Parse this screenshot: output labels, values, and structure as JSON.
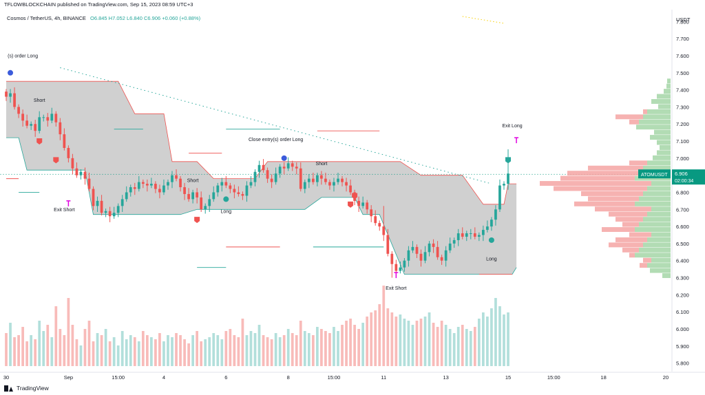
{
  "banner": "TFLOWBLOCKCHAIN published on TradingView.com, Sep 15, 2023 08:59 UTC+3",
  "legend": {
    "symbol": "Cosmos / TetherUS, 4h, BINANCE",
    "ohlc": "O6.845  H7.052  L6.840  C6.906  +0.060 (+0.88%)"
  },
  "currency": "USDT",
  "footer_brand": "TradingView",
  "colors": {
    "up": "#26a69a",
    "down": "#ef5350",
    "band_fill": "#c8c8c8",
    "vol_up": "#b2dfdb",
    "vol_down": "#f8bbb9",
    "price_tag": "#089981",
    "text": "#131722"
  },
  "price_tag": {
    "symbol": "ATOMUSDT",
    "price": "6.906",
    "countdown": "02:00:34"
  },
  "chart_data": {
    "type": "candlestick",
    "title": "Cosmos / TetherUS, 4h, BINANCE",
    "y_axis": {
      "min": 5.75,
      "max": 7.87,
      "ticks": [
        "7.800",
        "7.700",
        "7.600",
        "7.500",
        "7.400",
        "7.300",
        "7.200",
        "7.100",
        "7.000",
        "6.900",
        "6.800",
        "6.700",
        "6.600",
        "6.500",
        "6.400",
        "6.300",
        "6.200",
        "6.100",
        "6.000",
        "5.900",
        "5.800"
      ],
      "tick_values": [
        7.8,
        7.7,
        7.6,
        7.5,
        7.4,
        7.3,
        7.2,
        7.1,
        7.0,
        6.9,
        6.8,
        6.7,
        6.6,
        6.5,
        6.4,
        6.3,
        6.2,
        6.1,
        6.0,
        5.9,
        5.8
      ]
    },
    "x_axis": {
      "labels": [
        "30",
        "Sep",
        "15:00",
        "4",
        "6",
        "8",
        "15:00",
        "11",
        "13",
        "15",
        "15:00",
        "18",
        "20"
      ],
      "label_bar_index": [
        0,
        15,
        27,
        38,
        53,
        68,
        79,
        91,
        106,
        121,
        132,
        144,
        159
      ]
    },
    "bar_count_with_margin": 161,
    "candles_start": 62.2,
    "candles_end": 67.75,
    "close_series": [
      7.36,
      7.38,
      7.3,
      7.26,
      7.22,
      7.19,
      7.2,
      7.16,
      7.24,
      7.24,
      7.22,
      7.26,
      7.21,
      7.14,
      7.06,
      7.0,
      6.94,
      6.9,
      6.92,
      6.88,
      6.82,
      6.72,
      6.75,
      6.68,
      6.69,
      6.66,
      6.68,
      6.72,
      6.76,
      6.8,
      6.83,
      6.82,
      6.86,
      6.85,
      6.84,
      6.85,
      6.82,
      6.8,
      6.84,
      6.86,
      6.9,
      6.88,
      6.83,
      6.79,
      6.76,
      6.8,
      6.77,
      6.7,
      6.72,
      6.76,
      6.8,
      6.84,
      6.86,
      6.84,
      6.82,
      6.8,
      6.79,
      6.78,
      6.84,
      6.86,
      6.92,
      6.96,
      6.93,
      6.88,
      6.86,
      6.91,
      6.95,
      6.94,
      6.97,
      6.95,
      6.94,
      6.82,
      6.86,
      6.88,
      6.86,
      6.9,
      6.88,
      6.86,
      6.84,
      6.86,
      6.88,
      6.86,
      6.84,
      6.8,
      6.75,
      6.72,
      6.74,
      6.7,
      6.66,
      6.62,
      6.6,
      6.55,
      6.44,
      6.38,
      6.34,
      6.36,
      6.4,
      6.46,
      6.48,
      6.44,
      6.4,
      6.45,
      6.5,
      6.48,
      6.42,
      6.4,
      6.46,
      6.5,
      6.52,
      6.56,
      6.54,
      6.56,
      6.56,
      6.54,
      6.55,
      6.58,
      6.6,
      6.64,
      6.7,
      6.84,
      6.85,
      6.91
    ],
    "volumes": [
      0.32,
      0.42,
      0.28,
      0.3,
      0.38,
      0.24,
      0.3,
      0.26,
      0.44,
      0.34,
      0.4,
      0.28,
      0.58,
      0.36,
      0.3,
      0.66,
      0.4,
      0.26,
      0.2,
      0.36,
      0.44,
      0.24,
      0.32,
      0.3,
      0.36,
      0.24,
      0.28,
      0.2,
      0.34,
      0.26,
      0.3,
      0.28,
      0.24,
      0.34,
      0.3,
      0.28,
      0.26,
      0.32,
      0.24,
      0.3,
      0.28,
      0.32,
      0.3,
      0.26,
      0.22,
      0.3,
      0.34,
      0.24,
      0.26,
      0.28,
      0.32,
      0.3,
      0.26,
      0.34,
      0.36,
      0.3,
      0.28,
      0.46,
      0.3,
      0.34,
      0.32,
      0.4,
      0.3,
      0.28,
      0.26,
      0.32,
      0.28,
      0.3,
      0.36,
      0.32,
      0.3,
      0.44,
      0.34,
      0.32,
      0.3,
      0.38,
      0.36,
      0.34,
      0.32,
      0.38,
      0.34,
      0.4,
      0.44,
      0.46,
      0.4,
      0.36,
      0.42,
      0.48,
      0.52,
      0.54,
      0.6,
      0.78,
      0.56,
      0.52,
      0.48,
      0.5,
      0.46,
      0.44,
      0.4,
      0.44,
      0.46,
      0.48,
      0.52,
      0.42,
      0.38,
      0.44,
      0.4,
      0.36,
      0.32,
      0.38,
      0.4,
      0.36,
      0.34,
      0.38,
      0.46,
      0.52,
      0.48,
      0.56,
      0.66,
      0.58,
      0.5,
      0.52
    ]
  },
  "annotations": {
    "order_long": "(s) order Long",
    "short_1": "Short",
    "exit_short_1": "Exit Short",
    "short_2": "Short",
    "long_1": "Long",
    "close_entry": "Close entry(s) order Long",
    "short_3": "Short",
    "exit_short_2": "Exit Short",
    "long_2": "Long",
    "exit_long": "Exit Long"
  }
}
